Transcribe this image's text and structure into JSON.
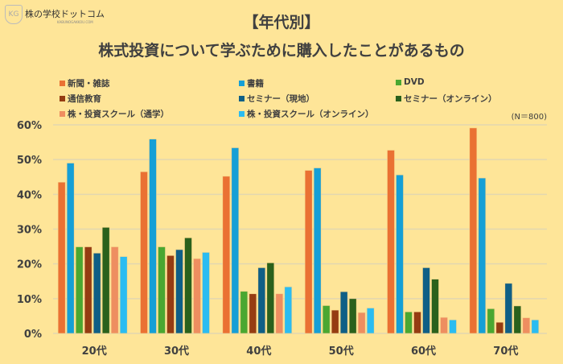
{
  "logo": {
    "text": "株の学校ドットコム",
    "sub": "KABUNOGAKKOU.COM"
  },
  "chart_data": {
    "type": "bar",
    "title": "【年代別】",
    "subtitle": "株式投資について学ぶために購入したことがあるもの",
    "note": "(N＝800)",
    "categories": [
      "20代",
      "30代",
      "40代",
      "50代",
      "60代",
      "70代"
    ],
    "ylim": [
      0,
      60
    ],
    "yticks": [
      "0%",
      "10%",
      "20%",
      "30%",
      "40%",
      "50%",
      "60%"
    ],
    "grid": true,
    "legend_position": "top",
    "series": [
      {
        "name": "新聞・雑誌",
        "color": "#ea7133",
        "values": [
          43.5,
          46.5,
          45.2,
          46.9,
          52.7,
          59.1
        ]
      },
      {
        "name": "書籍",
        "color": "#159fd6",
        "values": [
          49.0,
          55.9,
          53.4,
          47.6,
          45.6,
          44.7
        ]
      },
      {
        "name": "DVD",
        "color": "#4aa731",
        "values": [
          24.9,
          24.9,
          12.1,
          8.0,
          6.2,
          7.1
        ]
      },
      {
        "name": "通信教育",
        "color": "#953c12",
        "values": [
          24.9,
          22.4,
          11.4,
          6.7,
          6.2,
          3.2
        ]
      },
      {
        "name": "セミナー（現地）",
        "color": "#0f5f86",
        "values": [
          23.1,
          24.1,
          18.9,
          12.0,
          18.9,
          14.4
        ]
      },
      {
        "name": "セミナー（オンライン）",
        "color": "#2a611c",
        "values": [
          30.5,
          27.5,
          20.3,
          10.0,
          15.6,
          7.9
        ]
      },
      {
        "name": "株・投資スクール（通学）",
        "color": "#ee8e60",
        "values": [
          24.9,
          21.5,
          11.4,
          6.0,
          4.6,
          4.5
        ]
      },
      {
        "name": "株・投資スクール（オンライン）",
        "color": "#2bbcf1",
        "values": [
          22.1,
          23.3,
          13.4,
          7.3,
          3.9,
          3.9
        ]
      }
    ]
  }
}
